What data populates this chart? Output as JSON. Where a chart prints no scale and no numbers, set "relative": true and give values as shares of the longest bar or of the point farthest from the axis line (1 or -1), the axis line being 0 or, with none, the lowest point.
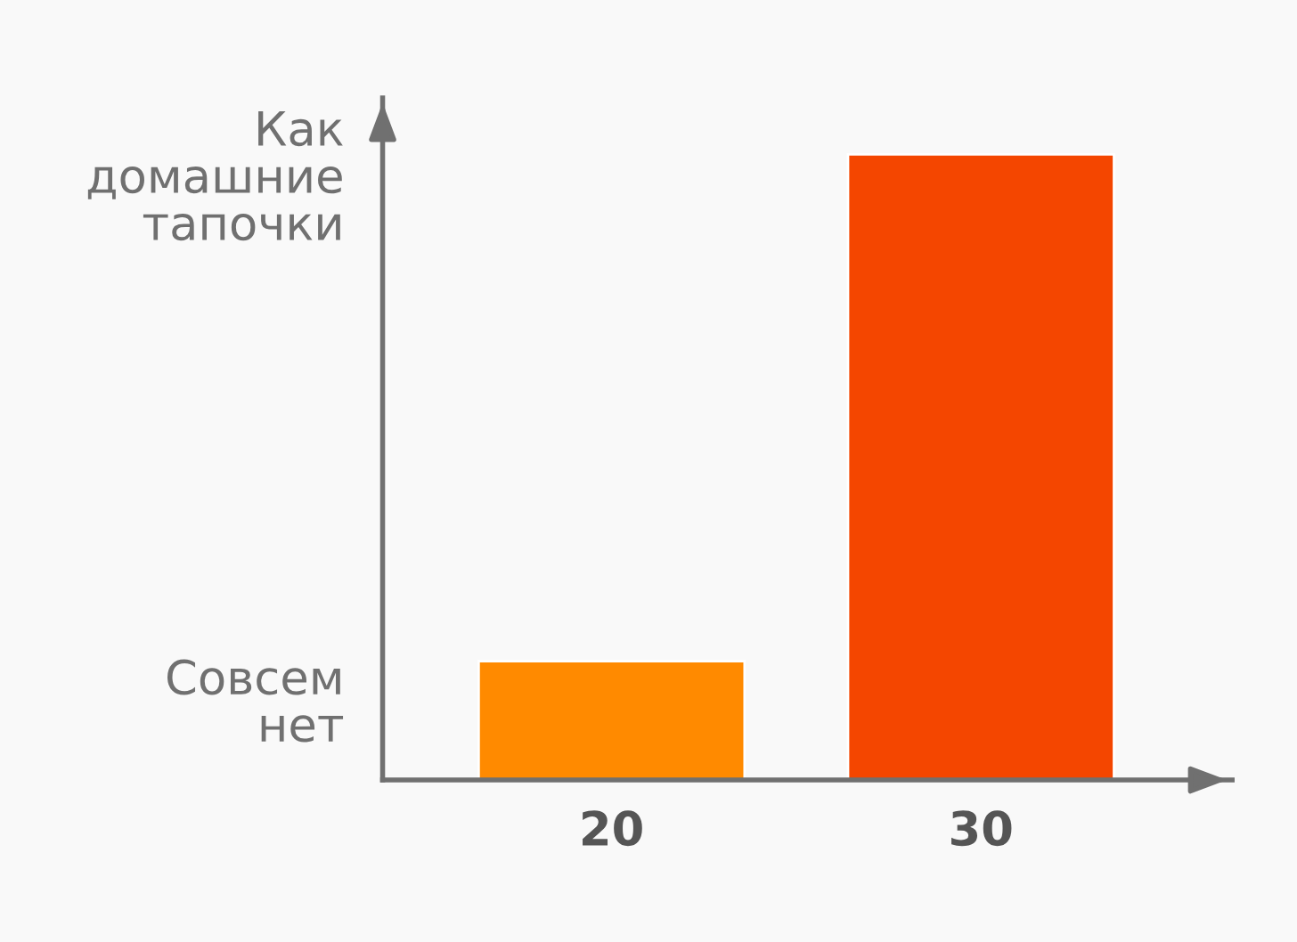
{
  "chart_data": {
    "type": "bar",
    "relative": true,
    "categories": [
      "20",
      "30"
    ],
    "values": [
      0.19,
      1
    ],
    "colors": [
      "#ff8a00",
      "#f44600"
    ],
    "annotations": [
      "Совсем нет",
      "Как домашние тапочки"
    ],
    "grid": false,
    "legend": false
  }
}
